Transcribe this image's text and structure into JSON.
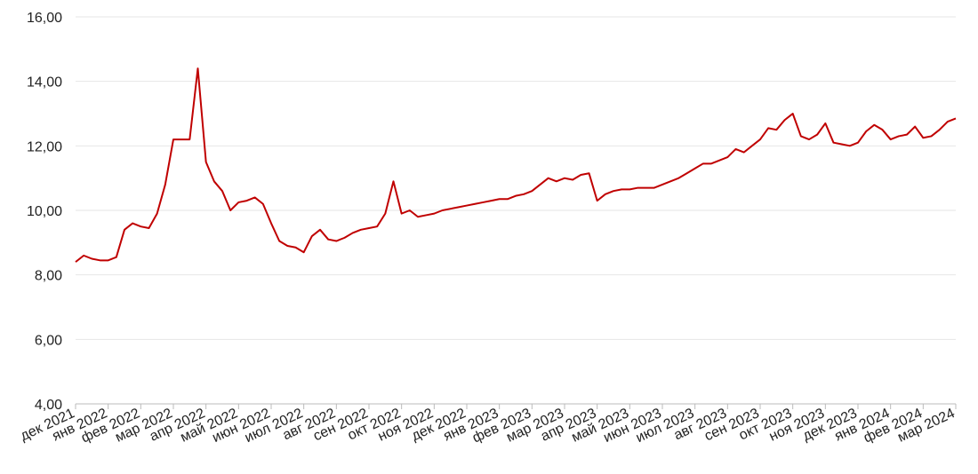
{
  "chart_data": {
    "type": "line",
    "categories": [
      "дек 2021",
      null,
      null,
      null,
      "янв 2022",
      null,
      null,
      null,
      "фев 2022",
      null,
      null,
      null,
      "мар 2022",
      null,
      null,
      null,
      "апр 2022",
      null,
      null,
      null,
      "май 2022",
      null,
      null,
      null,
      "июн 2022",
      null,
      null,
      null,
      "июл 2022",
      null,
      null,
      null,
      "авг 2022",
      null,
      null,
      null,
      "сен 2022",
      null,
      null,
      null,
      "окт 2022",
      null,
      null,
      null,
      "ноя 2022",
      null,
      null,
      null,
      "дек 2022",
      null,
      null,
      null,
      "янв 2023",
      null,
      null,
      null,
      "фев 2023",
      null,
      null,
      null,
      "мар 2023",
      null,
      null,
      null,
      "апр 2023",
      null,
      null,
      null,
      "май 2023",
      null,
      null,
      null,
      "июн 2023",
      null,
      null,
      null,
      "июл 2023",
      null,
      null,
      null,
      "авг 2023",
      null,
      null,
      null,
      "сен 2023",
      null,
      null,
      null,
      "окт 2023",
      null,
      null,
      null,
      "ноя 2023",
      null,
      null,
      null,
      "дек 2023",
      null,
      null,
      null,
      "янв 2024",
      null,
      null,
      null,
      "фев 2024",
      null,
      null,
      null,
      "мар 2024"
    ],
    "series": [
      {
        "color": "#c00000",
        "values": [
          8.4,
          8.6,
          8.5,
          8.45,
          8.45,
          8.55,
          9.4,
          9.6,
          9.5,
          9.45,
          9.9,
          10.8,
          12.2,
          12.2,
          12.2,
          14.4,
          11.5,
          10.9,
          10.6,
          10.0,
          10.25,
          10.3,
          10.4,
          10.2,
          9.6,
          9.05,
          8.9,
          8.85,
          8.7,
          9.2,
          9.4,
          9.1,
          9.05,
          9.15,
          9.3,
          9.4,
          9.45,
          9.5,
          9.9,
          10.9,
          9.9,
          10.0,
          9.8,
          9.85,
          9.9,
          10.0,
          10.05,
          10.1,
          10.15,
          10.2,
          10.25,
          10.3,
          10.35,
          10.35,
          10.45,
          10.5,
          10.6,
          10.8,
          11.0,
          10.9,
          11.0,
          10.95,
          11.1,
          11.15,
          10.3,
          10.5,
          10.6,
          10.65,
          10.65,
          10.7,
          10.7,
          10.7,
          10.8,
          10.9,
          11.0,
          11.15,
          11.3,
          11.45,
          11.45,
          11.55,
          11.65,
          11.9,
          11.8,
          12.0,
          12.2,
          12.55,
          12.5,
          12.8,
          13.0,
          12.3,
          12.2,
          12.35,
          12.7,
          12.1,
          12.05,
          12.0,
          12.1,
          12.45,
          12.65,
          12.5,
          12.2,
          12.3,
          12.35,
          12.6,
          12.25,
          12.3,
          12.5,
          12.75,
          12.85
        ]
      }
    ],
    "ylim": [
      4,
      16
    ],
    "yticks": [
      {
        "value": 4,
        "label": "4,00"
      },
      {
        "value": 6,
        "label": "6,00"
      },
      {
        "value": 8,
        "label": "8,00"
      },
      {
        "value": 10,
        "label": "10,00"
      },
      {
        "value": 12,
        "label": "12,00"
      },
      {
        "value": 14,
        "label": "14,00"
      },
      {
        "value": 16,
        "label": "16,00"
      }
    ],
    "grid": true
  }
}
